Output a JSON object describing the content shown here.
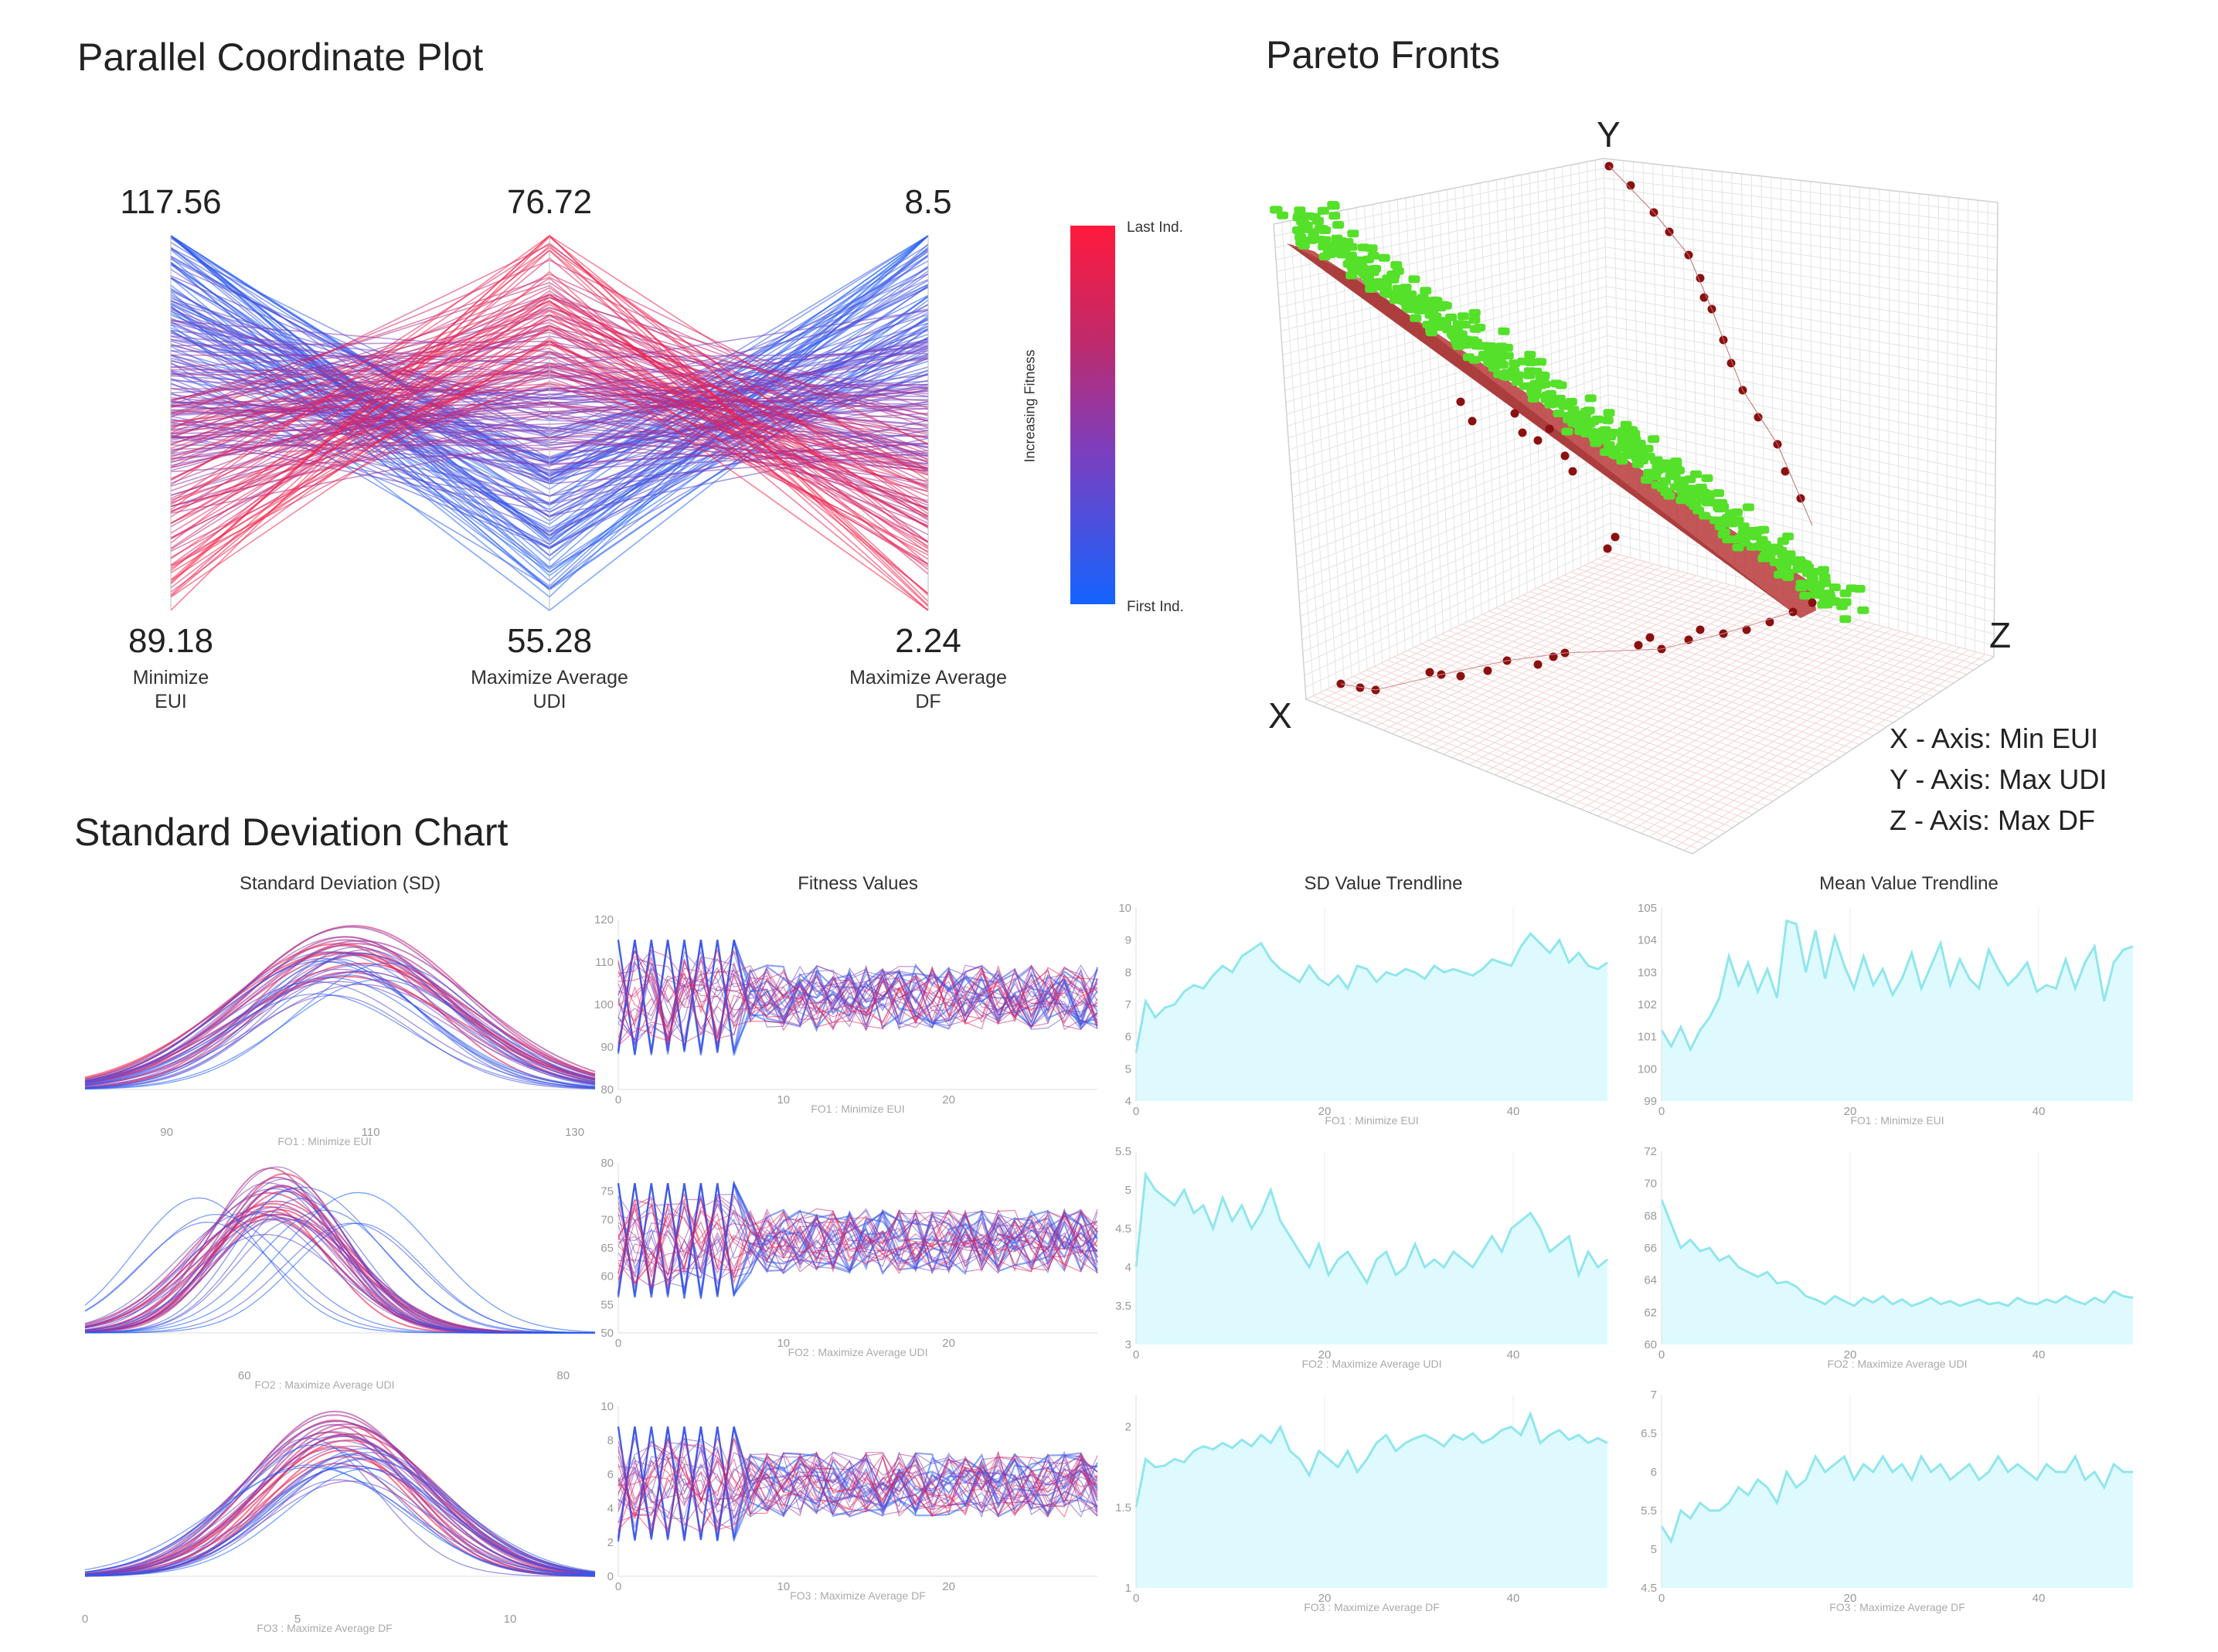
{
  "titles": {
    "pcp": "Parallel Coordinate Plot",
    "pareto": "Pareto Fronts",
    "sd": "Standard Deviation Chart"
  },
  "pcp": {
    "axes": [
      {
        "max": "117.56",
        "min": "89.18",
        "name_line1": "Minimize",
        "name_line2": "EUI"
      },
      {
        "max": "76.72",
        "min": "55.28",
        "name_line1": "Maximize Average",
        "name_line2": "UDI"
      },
      {
        "max": "8.5",
        "min": "2.24",
        "name_line1": "Maximize Average",
        "name_line2": "DF"
      }
    ],
    "colorbar": {
      "top_label": "Last Ind.",
      "bottom_label": "First Ind.",
      "side_label": "Increasing Fitness",
      "color_top": "#ff1a3c",
      "color_mid": "#7b3fbf",
      "color_bottom": "#1463ff"
    }
  },
  "pareto": {
    "axis_letters": {
      "x": "X",
      "y": "Y",
      "z": "Z"
    },
    "legend": [
      "X - Axis: Min EUI",
      "Y - Axis: Max UDI",
      "Z - Axis: Max DF"
    ],
    "colors": {
      "points": "#55e02a",
      "front": "#b83a3a",
      "history": "#8b1010"
    }
  },
  "panels": {
    "col_titles": [
      "Standard Deviation (SD)",
      "Fitness Values",
      "SD Value Trendline",
      "Mean Value Trendline"
    ],
    "row_xlabels": [
      "FO1 : Minimize EUI",
      "FO2 : Maximize Average UDI",
      "FO3 : Maximize Average DF"
    ]
  },
  "chart_data": [
    {
      "type": "line",
      "title": "Standard Deviation (SD)",
      "xlabel": "FO1 : Minimize EUI",
      "xticks": [
        "90",
        "110",
        "130"
      ],
      "xlim": [
        82,
        132
      ],
      "mean": 108,
      "sd": 9
    },
    {
      "type": "line",
      "title": "Standard Deviation (SD)",
      "xlabel": "FO2 : Maximize Average UDI",
      "xticks": [
        "60",
        "80"
      ],
      "xlim": [
        50,
        82
      ],
      "mean": 62,
      "sd": 4
    },
    {
      "type": "line",
      "title": "Standard Deviation (SD)",
      "xlabel": "FO3 : Maximize Average DF",
      "xticks": [
        "0",
        "5",
        "10"
      ],
      "xlim": [
        0,
        12
      ],
      "mean": 6,
      "sd": 1.8
    },
    {
      "type": "line",
      "title": "Fitness Values",
      "xlabel": "FO1 : Minimize EUI",
      "xlim": [
        0,
        29
      ],
      "ylim": [
        80,
        120
      ],
      "xticks": [
        "0",
        "10",
        "20"
      ],
      "yticks": [
        "80",
        "90",
        "100",
        "110",
        "120"
      ]
    },
    {
      "type": "line",
      "title": "Fitness Values",
      "xlabel": "FO2 : Maximize Average UDI",
      "xlim": [
        0,
        29
      ],
      "ylim": [
        50,
        80
      ],
      "xticks": [
        "0",
        "10",
        "20"
      ],
      "yticks": [
        "50",
        "55",
        "60",
        "65",
        "70",
        "75",
        "80"
      ]
    },
    {
      "type": "line",
      "title": "Fitness Values",
      "xlabel": "FO3 : Maximize Average DF",
      "xlim": [
        0,
        29
      ],
      "ylim": [
        0,
        10
      ],
      "xticks": [
        "0",
        "10",
        "20"
      ],
      "yticks": [
        "0",
        "2",
        "4",
        "6",
        "8",
        "10"
      ]
    },
    {
      "type": "area",
      "title": "SD Value Trendline",
      "xlabel": "FO1 : Minimize EUI",
      "xlim": [
        0,
        50
      ],
      "ylim": [
        4,
        10
      ],
      "xticks": [
        "0",
        "20",
        "40"
      ],
      "yticks": [
        "4",
        "5",
        "6",
        "7",
        "8",
        "9",
        "10"
      ],
      "values": [
        5.5,
        7.1,
        6.6,
        6.9,
        7.0,
        7.4,
        7.6,
        7.5,
        7.9,
        8.2,
        8.0,
        8.5,
        8.7,
        8.9,
        8.4,
        8.1,
        7.9,
        7.7,
        8.2,
        7.8,
        7.6,
        7.9,
        7.5,
        8.2,
        8.1,
        7.7,
        8.0,
        7.9,
        8.1,
        8.0,
        7.8,
        8.2,
        8.0,
        8.1,
        8.0,
        7.9,
        8.1,
        8.4,
        8.3,
        8.2,
        8.8,
        9.2,
        8.9,
        8.6,
        9.0,
        8.3,
        8.6,
        8.2,
        8.1,
        8.3
      ]
    },
    {
      "type": "area",
      "title": "SD Value Trendline",
      "xlabel": "FO2 : Maximize Average UDI",
      "xlim": [
        0,
        50
      ],
      "ylim": [
        3,
        5.5
      ],
      "xticks": [
        "0",
        "20",
        "40"
      ],
      "yticks": [
        "3",
        "3.5",
        "4",
        "4.5",
        "5",
        "5.5"
      ],
      "values": [
        4.0,
        5.2,
        5.0,
        4.9,
        4.8,
        5.0,
        4.7,
        4.8,
        4.5,
        4.9,
        4.6,
        4.8,
        4.5,
        4.7,
        5.0,
        4.6,
        4.4,
        4.2,
        4.0,
        4.3,
        3.9,
        4.1,
        4.2,
        4.0,
        3.8,
        4.1,
        4.2,
        3.9,
        4.0,
        4.3,
        4.0,
        4.1,
        4.0,
        4.2,
        4.1,
        4.0,
        4.2,
        4.4,
        4.2,
        4.5,
        4.6,
        4.7,
        4.5,
        4.2,
        4.3,
        4.4,
        3.9,
        4.2,
        4.0,
        4.1
      ]
    },
    {
      "type": "area",
      "title": "SD Value Trendline",
      "xlabel": "FO3 : Maximize Average DF",
      "xlim": [
        0,
        50
      ],
      "ylim": [
        1,
        2.2
      ],
      "xticks": [
        "0",
        "20",
        "40"
      ],
      "yticks": [
        "1",
        "1.5",
        "2"
      ],
      "values": [
        1.5,
        1.8,
        1.75,
        1.76,
        1.8,
        1.78,
        1.85,
        1.88,
        1.86,
        1.9,
        1.87,
        1.92,
        1.88,
        1.95,
        1.9,
        2.0,
        1.85,
        1.8,
        1.7,
        1.85,
        1.8,
        1.75,
        1.85,
        1.72,
        1.8,
        1.9,
        1.95,
        1.85,
        1.9,
        1.93,
        1.95,
        1.92,
        1.88,
        1.95,
        1.92,
        1.96,
        1.9,
        1.93,
        1.98,
        2.0,
        1.95,
        2.08,
        1.9,
        1.95,
        1.98,
        1.92,
        1.95,
        1.9,
        1.93,
        1.9
      ]
    },
    {
      "type": "area",
      "title": "Mean Value Trendline",
      "xlabel": "FO1 : Minimize EUI",
      "xlim": [
        0,
        50
      ],
      "ylim": [
        99,
        105
      ],
      "xticks": [
        "0",
        "20",
        "40"
      ],
      "yticks": [
        "99",
        "100",
        "101",
        "102",
        "103",
        "104",
        "105"
      ],
      "values": [
        101.2,
        100.7,
        101.3,
        100.6,
        101.2,
        101.6,
        102.2,
        103.5,
        102.6,
        103.3,
        102.4,
        103.1,
        102.2,
        104.6,
        104.5,
        103.0,
        104.3,
        102.8,
        104.1,
        103.2,
        102.5,
        103.5,
        102.6,
        103.1,
        102.3,
        102.8,
        103.6,
        102.5,
        103.2,
        103.9,
        102.6,
        103.4,
        102.8,
        102.5,
        103.7,
        103.1,
        102.6,
        102.9,
        103.3,
        102.4,
        102.6,
        102.5,
        103.4,
        102.5,
        103.3,
        103.8,
        102.1,
        103.3,
        103.7,
        103.8
      ]
    },
    {
      "type": "area",
      "title": "Mean Value Trendline",
      "xlabel": "FO2 : Maximize Average UDI",
      "xlim": [
        0,
        50
      ],
      "ylim": [
        60,
        72
      ],
      "xticks": [
        "0",
        "20",
        "40"
      ],
      "yticks": [
        "60",
        "62",
        "64",
        "66",
        "68",
        "70",
        "72"
      ],
      "values": [
        69.0,
        67.5,
        66.0,
        66.5,
        65.8,
        66.0,
        65.2,
        65.5,
        64.8,
        64.5,
        64.2,
        64.5,
        63.8,
        63.9,
        63.6,
        63.0,
        62.8,
        62.5,
        63.0,
        62.7,
        62.4,
        62.9,
        62.6,
        63.0,
        62.5,
        62.8,
        62.4,
        62.6,
        62.9,
        62.5,
        62.7,
        62.4,
        62.6,
        62.8,
        62.5,
        62.6,
        62.4,
        62.9,
        62.6,
        62.5,
        62.8,
        62.6,
        63.0,
        62.7,
        62.5,
        62.9,
        62.6,
        63.3,
        63.0,
        62.9
      ]
    },
    {
      "type": "area",
      "title": "Mean Value Trendline",
      "xlabel": "FO3 : Maximize Average DF",
      "xlim": [
        0,
        50
      ],
      "ylim": [
        4.5,
        7
      ],
      "xticks": [
        "0",
        "20",
        "40"
      ],
      "yticks": [
        "4.5",
        "5",
        "5.5",
        "6",
        "6.5",
        "7"
      ],
      "values": [
        5.3,
        5.1,
        5.5,
        5.4,
        5.6,
        5.5,
        5.5,
        5.6,
        5.8,
        5.7,
        5.9,
        5.8,
        5.6,
        6.0,
        5.8,
        5.9,
        6.2,
        6.0,
        6.1,
        6.2,
        5.9,
        6.1,
        6.0,
        6.2,
        6.0,
        6.1,
        5.9,
        6.2,
        6.0,
        6.1,
        5.9,
        6.0,
        6.1,
        5.9,
        6.0,
        6.2,
        6.0,
        6.1,
        6.0,
        5.9,
        6.1,
        6.0,
        6.0,
        6.2,
        5.9,
        6.0,
        5.8,
        6.1,
        6.0,
        6.0
      ]
    }
  ]
}
